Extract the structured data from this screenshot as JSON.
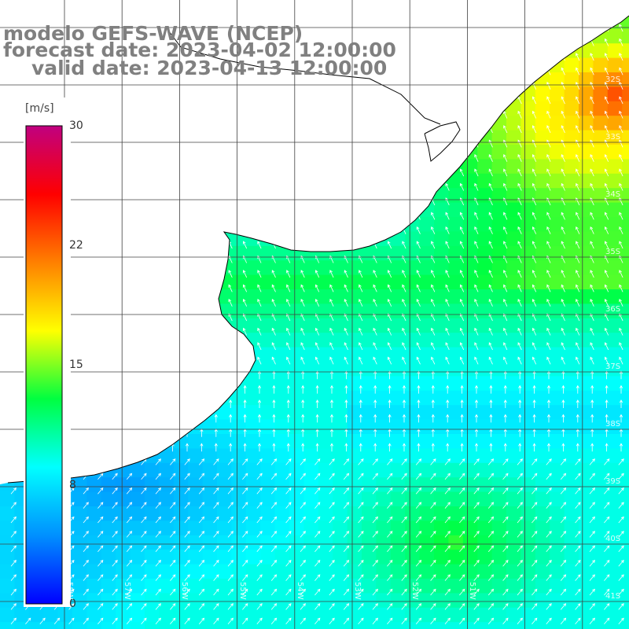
{
  "title": {
    "line1": "modelo GEFS-WAVE (NCEP)",
    "line2": "forecast date: 2023-04-02 12:00:00",
    "line3": "valid date: 2023-04-13 12:00:00"
  },
  "colorbar": {
    "units": "[m/s]",
    "ticks": [
      "30",
      "22",
      "15",
      "8",
      "0"
    ],
    "stops": [
      "#0000ff",
      "#0090ff",
      "#00ffff",
      "#00ff40",
      "#ffff00",
      "#ff8000",
      "#ff0000",
      "#c00080"
    ]
  },
  "map": {
    "lat_labels": [
      "32S",
      "33S",
      "34S",
      "35S",
      "36S",
      "37S",
      "38S",
      "39S",
      "40S",
      "41S"
    ],
    "lon_labels": [
      "58W",
      "57W",
      "56W",
      "55W",
      "54W",
      "53W",
      "52W",
      "51W"
    ],
    "colors": {
      "land": "#ffffff",
      "coast": "#000000",
      "grid": "#404040",
      "arrow": "#ffffff"
    }
  }
}
